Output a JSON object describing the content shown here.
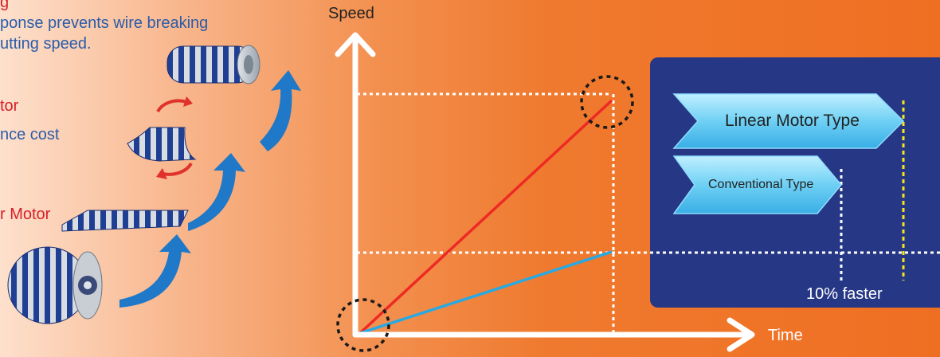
{
  "left_text": {
    "line1": "g",
    "line2": "ponse prevents wire breaking",
    "line3": "utting speed.",
    "line4": "tor",
    "line5": "nce cost",
    "line6": "r Motor"
  },
  "chart": {
    "y_label": "Speed",
    "x_label": "Time",
    "legend_linear": "Linear Motor Type",
    "legend_conventional": "Conventional Type",
    "faster_note": "10% faster"
  },
  "colors": {
    "red_line": "#ee2a24",
    "blue_line": "#29a9e1",
    "panel": "#253785",
    "arrow": "#1f78c8",
    "highlight_dash": "#f5e61a"
  },
  "chart_data": {
    "type": "line",
    "series": [
      {
        "name": "Linear Motor Type",
        "x": [
          0,
          1
        ],
        "y": [
          0,
          1
        ]
      },
      {
        "name": "Conventional Type",
        "x": [
          0,
          1
        ],
        "y": [
          0,
          0.35
        ]
      }
    ],
    "xlabel": "Time",
    "ylabel": "Speed",
    "annotation": "10% faster"
  }
}
